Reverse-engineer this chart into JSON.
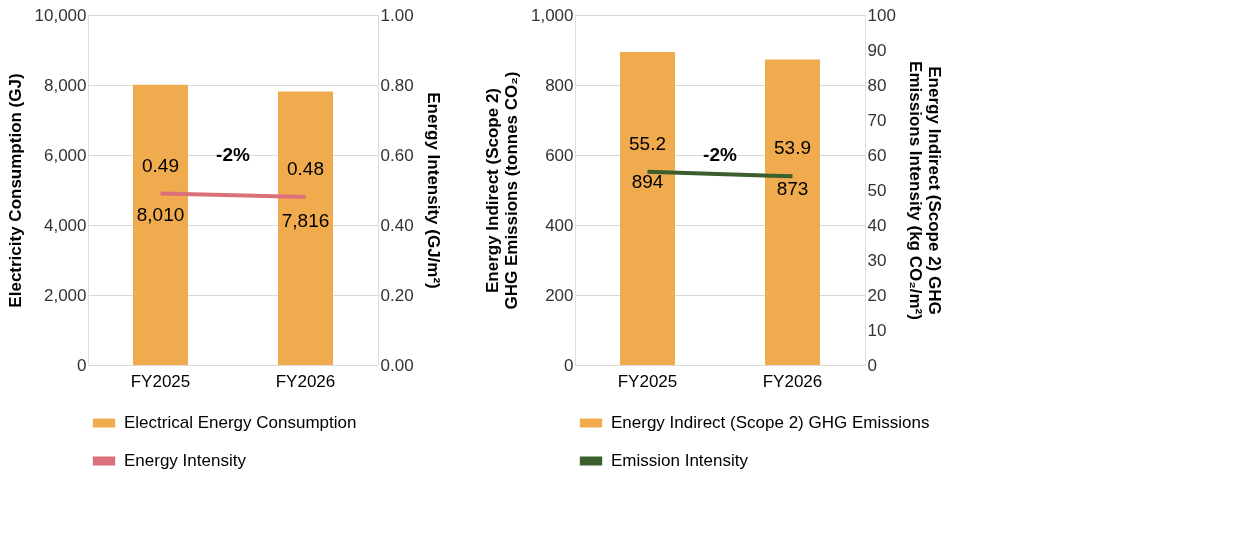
{
  "chart_data": [
    {
      "type": "bar",
      "categories": [
        "FY2025",
        "FY2026"
      ],
      "ylabel": "Electricity Consumption (GJ)",
      "y2label": "Energy Intensity (GJ/m²)",
      "ylim": [
        0,
        10000
      ],
      "yticks": [
        0,
        {
          "value": 2000,
          "label": "2,000"
        },
        {
          "value": 4000,
          "label": "4,000"
        },
        {
          "value": 6000,
          "label": "6,000"
        },
        {
          "value": 8000,
          "label": "8,000"
        },
        {
          "value": 10000,
          "label": "10,000"
        }
      ],
      "y2lim": [
        0,
        1
      ],
      "y2ticks": [
        {
          "value": 0,
          "label": "0.00"
        },
        {
          "value": 0.2,
          "label": "0.20"
        },
        {
          "value": 0.4,
          "label": "0.40"
        },
        {
          "value": 0.6,
          "label": "0.60"
        },
        {
          "value": 0.8,
          "label": "0.80"
        },
        {
          "value": 1,
          "label": "1.00"
        }
      ],
      "grid": "y",
      "legend": "bottom",
      "marker": "none",
      "annotations": [
        "-2%"
      ],
      "series": [
        {
          "name": "Electrical Energy Consumption",
          "color": "#f0ab4f",
          "values": [
            8010,
            7816
          ],
          "value_labels": [
            "8,010",
            "7,816"
          ]
        },
        {
          "name": "Energy Intensity",
          "type": "line",
          "axis": "y2",
          "color": "#d9707a",
          "values": [
            0.49,
            0.48
          ],
          "value_labels": [
            "0.49",
            "0.48"
          ]
        }
      ]
    },
    {
      "type": "bar",
      "categories": [
        "FY2025",
        "FY2026"
      ],
      "ylabel": "Energy Indirect (Scope 2) GHG Emissions (tonnes CO₂)",
      "y2label": "Energy Indirect (Scope 2) GHG Emissions Intensity (kg CO₂/m²)",
      "ylim": [
        0,
        1000
      ],
      "yticks": [
        0,
        200,
        400,
        600,
        800,
        {
          "value": 1000,
          "label": "1,000"
        }
      ],
      "y2lim": [
        0,
        100
      ],
      "y2ticks": [
        0,
        10,
        20,
        30,
        40,
        50,
        60,
        70,
        80,
        90,
        100
      ],
      "grid": "y",
      "legend": "bottom",
      "marker": "none",
      "annotations": [
        "-2%"
      ],
      "series": [
        {
          "name": "Energy Indirect (Scope 2) GHG Emissions",
          "color": "#f0ab4f",
          "values": [
            894,
            873
          ],
          "value_labels": [
            "894",
            "873"
          ]
        },
        {
          "name": "Emission Intensity",
          "type": "line",
          "axis": "y2",
          "color": "#3a5f2c",
          "values": [
            55.2,
            53.9
          ],
          "value_labels": [
            "55.2",
            "53.9"
          ]
        }
      ]
    }
  ]
}
